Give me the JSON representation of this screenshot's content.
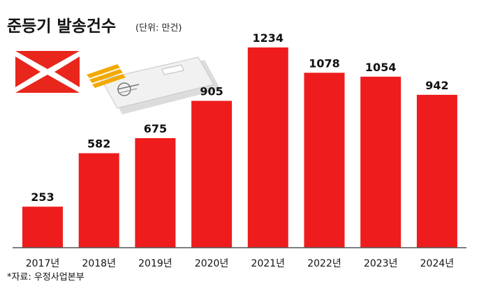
{
  "chart_data": {
    "type": "bar",
    "title": "준등기 발송건수",
    "unit": "(단위: 만건)",
    "categories": [
      "2017년",
      "2018년",
      "2019년",
      "2020년",
      "2021년",
      "2022년",
      "2023년",
      "2024년"
    ],
    "values": [
      253,
      582,
      675,
      905,
      1234,
      1078,
      1054,
      942
    ],
    "value_labels": [
      "253",
      "582",
      "675",
      "905",
      "1234",
      "1078",
      "1054",
      "942"
    ],
    "ylim": [
      0,
      1234
    ],
    "grid": false,
    "legend": "none",
    "xlabel": "",
    "ylabel": ""
  },
  "source": "*자료: 우정사업본부",
  "colors": {
    "bar": "#ee1c1c",
    "baseline": "#555555",
    "logo_red": "#e8261c",
    "logo_gold": "#f2a900",
    "envelope": "#f1f1f1"
  },
  "icons": {
    "logo": "korea-post-logo-icon",
    "envelope": "envelope-icon"
  }
}
